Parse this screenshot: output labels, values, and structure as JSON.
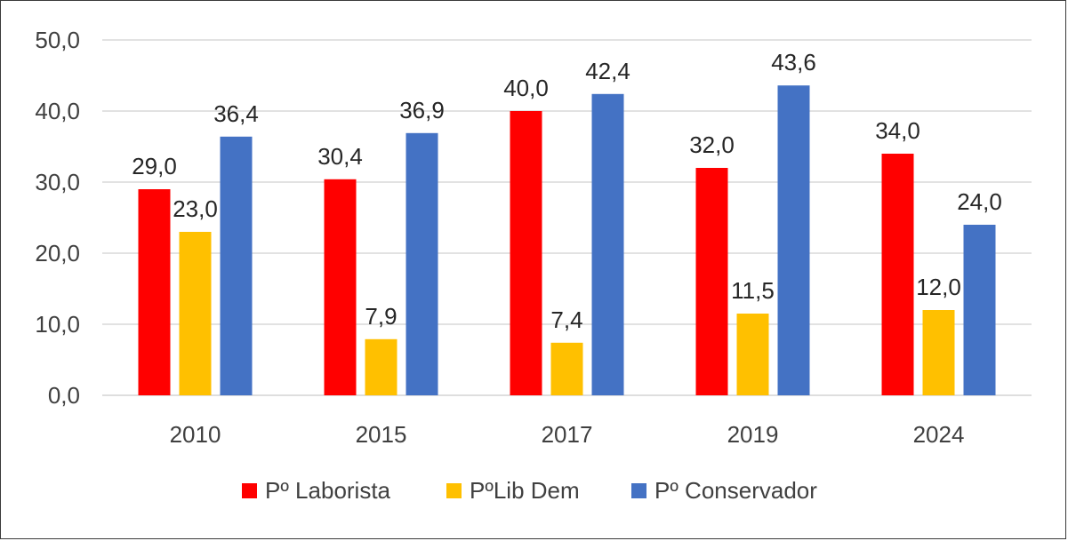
{
  "chart_data": {
    "type": "bar",
    "title": "",
    "xlabel": "",
    "ylabel": "",
    "categories": [
      "2010",
      "2015",
      "2017",
      "2019",
      "2024"
    ],
    "series": [
      {
        "name": "Pº Laborista",
        "color": "#ff0000",
        "values": [
          29.0,
          30.4,
          40.0,
          32.0,
          34.0
        ],
        "labels": [
          "29,0",
          "30,4",
          "40,0",
          "32,0",
          "34,0"
        ]
      },
      {
        "name": "PºLib Dem",
        "color": "#ffc000",
        "values": [
          23.0,
          7.9,
          7.4,
          11.5,
          12.0
        ],
        "labels": [
          "23,0",
          "7,9",
          "7,4",
          "11,5",
          "12,0"
        ]
      },
      {
        "name": "Pº Conservador",
        "color": "#4472c4",
        "values": [
          36.4,
          36.9,
          42.4,
          43.6,
          24.0
        ],
        "labels": [
          "36,4",
          "36,9",
          "42,4",
          "43,6",
          "24,0"
        ]
      }
    ],
    "ylim": [
      0,
      50
    ],
    "yticks": [
      "0,0",
      "10,0",
      "20,0",
      "30,0",
      "40,0",
      "50,0"
    ],
    "grid": true,
    "legend": "bottom-center"
  }
}
